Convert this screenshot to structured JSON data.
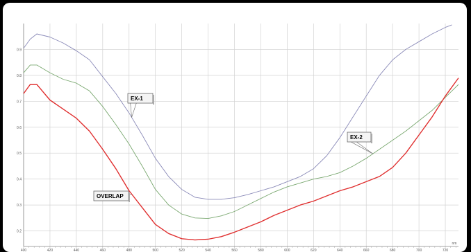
{
  "chart_data": {
    "type": "line",
    "title": "",
    "xlabel": "",
    "ylabel": "",
    "x_unit_label": "nm",
    "xlim": [
      400,
      730
    ],
    "ylim": [
      0.14,
      1.0
    ],
    "x_ticks": [
      400,
      420,
      440,
      460,
      480,
      500,
      520,
      540,
      560,
      580,
      600,
      620,
      640,
      660,
      680,
      700,
      720
    ],
    "y_ticks": [
      0.2,
      0.3,
      0.4,
      0.5,
      0.6,
      0.7,
      0.8,
      0.9
    ],
    "y_tick_labels": [
      "0.2",
      "0.3",
      "0.4",
      "0.5",
      "0.6",
      "0.7",
      "0.8",
      "0.9"
    ],
    "grid": true,
    "legend": "none",
    "series": [
      {
        "name": "EX-1",
        "color": "#8a8ab8",
        "x": [
          400,
          405,
          410,
          420,
          430,
          440,
          450,
          460,
          470,
          480,
          490,
          500,
          510,
          520,
          530,
          540,
          550,
          560,
          570,
          580,
          590,
          600,
          610,
          620,
          630,
          640,
          650,
          660,
          670,
          680,
          690,
          700,
          710,
          720,
          725
        ],
        "y": [
          0.905,
          0.94,
          0.96,
          0.948,
          0.925,
          0.895,
          0.86,
          0.795,
          0.73,
          0.655,
          0.57,
          0.48,
          0.41,
          0.36,
          0.33,
          0.322,
          0.322,
          0.328,
          0.34,
          0.355,
          0.37,
          0.39,
          0.41,
          0.44,
          0.49,
          0.56,
          0.64,
          0.72,
          0.8,
          0.86,
          0.9,
          0.93,
          0.96,
          0.985,
          0.995
        ]
      },
      {
        "name": "EX-2",
        "color": "#7aa870",
        "x": [
          400,
          405,
          410,
          420,
          430,
          440,
          450,
          460,
          470,
          480,
          490,
          500,
          510,
          520,
          530,
          540,
          550,
          560,
          570,
          580,
          590,
          600,
          610,
          620,
          630,
          640,
          650,
          660,
          670,
          680,
          690,
          700,
          710,
          720,
          730
        ],
        "y": [
          0.81,
          0.84,
          0.84,
          0.81,
          0.785,
          0.77,
          0.74,
          0.68,
          0.61,
          0.535,
          0.45,
          0.36,
          0.3,
          0.265,
          0.25,
          0.248,
          0.258,
          0.275,
          0.3,
          0.325,
          0.35,
          0.37,
          0.385,
          0.4,
          0.41,
          0.425,
          0.45,
          0.48,
          0.515,
          0.55,
          0.585,
          0.625,
          0.665,
          0.715,
          0.765
        ]
      },
      {
        "name": "OVERLAP",
        "color": "#e03030",
        "x": [
          400,
          405,
          410,
          420,
          430,
          440,
          450,
          460,
          470,
          480,
          490,
          500,
          510,
          520,
          530,
          540,
          550,
          560,
          570,
          580,
          590,
          600,
          610,
          620,
          630,
          640,
          650,
          660,
          670,
          680,
          690,
          700,
          710,
          720,
          730
        ],
        "y": [
          0.73,
          0.765,
          0.765,
          0.705,
          0.67,
          0.635,
          0.585,
          0.515,
          0.44,
          0.355,
          0.29,
          0.225,
          0.19,
          0.17,
          0.165,
          0.168,
          0.178,
          0.195,
          0.215,
          0.235,
          0.26,
          0.28,
          0.3,
          0.315,
          0.335,
          0.355,
          0.37,
          0.39,
          0.41,
          0.445,
          0.5,
          0.57,
          0.64,
          0.72,
          0.79
        ]
      }
    ],
    "annotations": [
      {
        "text": "EX-1",
        "target_series": "EX-1",
        "target_x": 482
      },
      {
        "text": "EX-2",
        "target_series": "EX-2",
        "target_x": 665
      },
      {
        "text": "OVERLAP",
        "target_series": "OVERLAP",
        "target_x": 482
      }
    ]
  }
}
